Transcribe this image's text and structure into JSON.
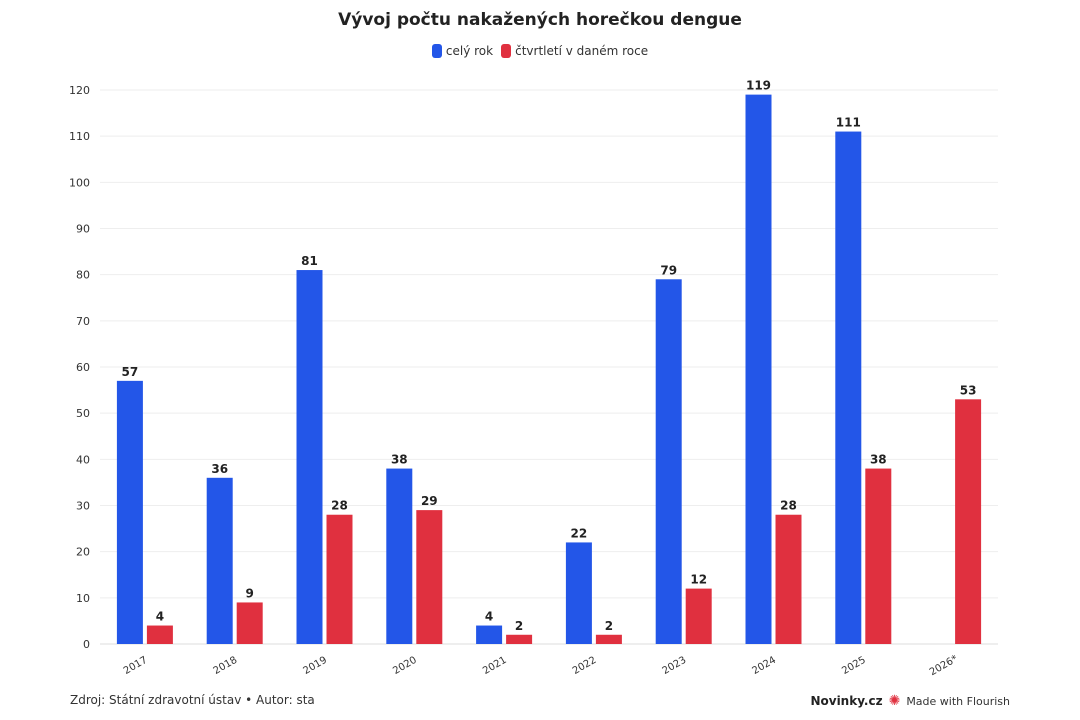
{
  "chart_data": {
    "type": "bar",
    "title": "Vývoj počtu nakažených horečkou dengue",
    "categories": [
      "2017",
      "2018",
      "2019",
      "2020",
      "2021",
      "2022",
      "2023",
      "2024",
      "2025",
      "2026*"
    ],
    "series": [
      {
        "name": "celý rok",
        "color": "#2356e8",
        "values": [
          57,
          36,
          81,
          38,
          4,
          22,
          79,
          119,
          111,
          null
        ]
      },
      {
        "name": "čtvrtletí v daném roce",
        "color": "#e0303f",
        "values": [
          4,
          9,
          28,
          29,
          2,
          2,
          12,
          28,
          38,
          53
        ]
      }
    ],
    "ylim": [
      0,
      120
    ],
    "yticks": [
      0,
      10,
      20,
      30,
      40,
      50,
      60,
      70,
      80,
      90,
      100,
      110,
      120
    ],
    "grid": true,
    "legend": "top",
    "data_labels": true
  },
  "footer": {
    "source": "Zdroj: Státní zdravotní ústav • Autor: sta",
    "brand": "Novinky.cz",
    "made_with": "Made with Flourish"
  }
}
